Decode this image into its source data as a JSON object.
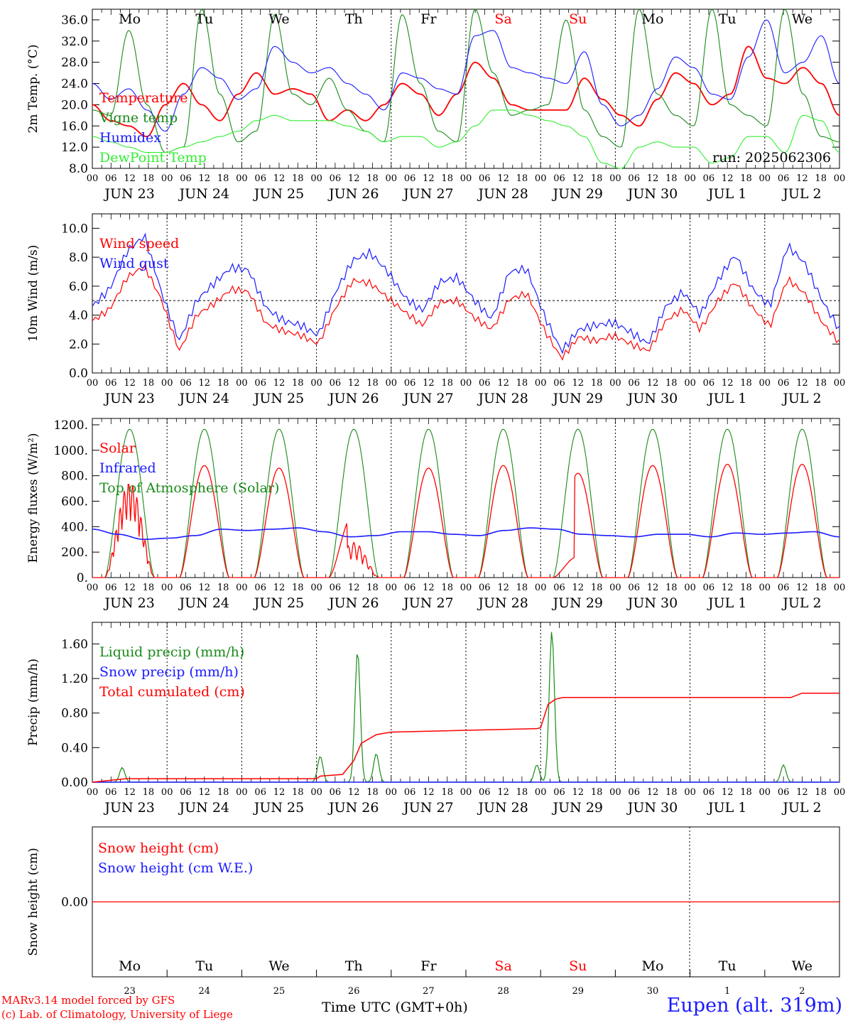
{
  "days": [
    {
      "abbr": "Mo",
      "date": "JUN 23",
      "num": "23",
      "weekend": false
    },
    {
      "abbr": "Tu",
      "date": "JUN 24",
      "num": "24",
      "weekend": false
    },
    {
      "abbr": "We",
      "date": "JUN 25",
      "num": "25",
      "weekend": false
    },
    {
      "abbr": "Th",
      "date": "JUN 26",
      "num": "26",
      "weekend": false
    },
    {
      "abbr": "Fr",
      "date": "JUN 27",
      "num": "27",
      "weekend": false
    },
    {
      "abbr": "Sa",
      "date": "JUN 28",
      "num": "28",
      "weekend": true
    },
    {
      "abbr": "Su",
      "date": "JUN 29",
      "num": "29",
      "weekend": true
    },
    {
      "abbr": "Mo",
      "date": "JUN 30",
      "num": "30",
      "weekend": false
    },
    {
      "abbr": "Tu",
      "date": "JUL  1",
      "num": "1",
      "weekend": false
    },
    {
      "abbr": "We",
      "date": "JUL  2",
      "num": "2",
      "weekend": false
    }
  ],
  "hour_ticks": [
    "00",
    "06",
    "12",
    "18"
  ],
  "colors": {
    "red": "#ff0000",
    "blue": "#1a1aff",
    "green": "#1a8a1a",
    "lightgreen": "#33ee33",
    "weekend": "#ff0000",
    "black": "#000000"
  },
  "run_label": "run: 2025062306",
  "x_axis_title": "Time UTC (GMT+0h)",
  "credit_line1": "MARv3.14 model forced by GFS",
  "credit_line2": "(c) Lab. of Climatology, University of Liege",
  "station": "Eupen (alt. 319m)",
  "chart_data": [
    {
      "type": "line",
      "ylabel": "2m Temp. (°C)",
      "ylim": [
        8,
        38
      ],
      "yticks": [
        "36.0",
        "32.0",
        "28.0",
        "24.0",
        "20.0",
        "16.0",
        "12.0",
        "8.0"
      ],
      "series": [
        {
          "name": "Temperature",
          "color": "red",
          "values": [
            20,
            17,
            16,
            14,
            20,
            24,
            20,
            17,
            22,
            26,
            22,
            23,
            22,
            17,
            19,
            17,
            20,
            24,
            22,
            18,
            22,
            28,
            25,
            20,
            19,
            19,
            19,
            25,
            21,
            18,
            16,
            21,
            26,
            24,
            20,
            22,
            31,
            25,
            24,
            27,
            24,
            18
          ]
        },
        {
          "name": "Vigne temp",
          "color": "green",
          "values": [
            19,
            18,
            34,
            20,
            11,
            12,
            38,
            22,
            13,
            15,
            37,
            22,
            20,
            25,
            19,
            15,
            13,
            37,
            24,
            15,
            13,
            38,
            26,
            18,
            19,
            20,
            36,
            19,
            14,
            12,
            38,
            22,
            18,
            16,
            38,
            20,
            18,
            16,
            38,
            22,
            14,
            13
          ]
        },
        {
          "name": "Humidex",
          "color": "blue",
          "values": [
            24,
            21,
            23,
            19,
            15,
            22,
            27,
            25,
            21,
            23,
            31,
            28,
            26,
            27,
            24,
            22,
            19,
            26,
            25,
            23,
            22,
            33,
            34,
            27,
            26,
            25,
            24,
            30,
            20,
            16,
            18,
            23,
            29,
            27,
            22,
            21,
            29,
            36,
            26,
            28,
            33,
            24
          ]
        },
        {
          "name": "DewPoint Temp",
          "color": "lightgreen",
          "values": [
            14,
            13,
            12,
            11,
            11,
            12,
            13,
            14,
            15,
            17,
            18,
            17,
            17,
            17,
            16,
            15,
            13,
            14,
            14,
            12,
            13,
            16,
            19,
            19,
            18,
            17,
            16,
            14,
            9,
            8,
            12,
            13,
            12,
            12,
            9,
            10,
            14,
            14,
            11,
            18,
            17,
            11
          ]
        }
      ]
    },
    {
      "type": "line",
      "ylabel": "10m Wind (m/s)",
      "ylim": [
        0,
        11
      ],
      "reference_line": 5,
      "yticks": [
        "10.0",
        "8.0",
        "6.0",
        "4.0",
        "2.0",
        "0.0"
      ],
      "series": [
        {
          "name": "Wind speed",
          "color": "red",
          "values": [
            3.6,
            4.4,
            6.6,
            7.4,
            5.0,
            1.5,
            4.0,
            4.8,
            5.8,
            5.6,
            3.4,
            2.9,
            2.6,
            2.0,
            4.5,
            6.4,
            6.2,
            5.2,
            4.2,
            3.3,
            4.9,
            5.0,
            3.8,
            3.0,
            5.1,
            5.5,
            3.0,
            1.0,
            2.5,
            2.2,
            2.6,
            2.0,
            1.5,
            3.6,
            4.4,
            3.0,
            5.0,
            6.3,
            4.5,
            3.2,
            6.5,
            5.5,
            3.5,
            2.1
          ]
        },
        {
          "name": "Wind gust",
          "color": "blue",
          "values": [
            4.6,
            5.8,
            8.4,
            9.5,
            5.5,
            2.2,
            5.0,
            6.2,
            7.3,
            7.1,
            4.5,
            3.6,
            3.3,
            2.6,
            5.6,
            7.8,
            8.3,
            7.0,
            5.2,
            4.3,
            6.3,
            6.6,
            5.0,
            3.7,
            7.0,
            7.2,
            4.0,
            1.5,
            3.0,
            3.3,
            3.5,
            2.8,
            2.0,
            4.6,
            5.6,
            4.0,
            6.4,
            8.2,
            5.8,
            4.6,
            8.8,
            7.6,
            5.0,
            3.0
          ]
        }
      ]
    },
    {
      "type": "line",
      "ylabel": "Energy fluxes (W/m²)",
      "ylim": [
        0,
        1250
      ],
      "yticks": [
        "1200.",
        "1000.",
        "800.",
        "600.",
        "400.",
        "200.",
        "0."
      ],
      "series": [
        {
          "name": "Solar",
          "color": "red",
          "peaks": [
            750,
            880,
            860,
            500,
            860,
            880,
            820,
            880,
            890,
            890
          ]
        },
        {
          "name": "Infrared",
          "color": "blue",
          "values": [
            380,
            340,
            300,
            310,
            330,
            380,
            370,
            380,
            390,
            360,
            320,
            330,
            360,
            360,
            340,
            330,
            370,
            390,
            380,
            340,
            330,
            320,
            340,
            340,
            320,
            350,
            340,
            350,
            360,
            320
          ]
        },
        {
          "name": "Top of Atmosphere (Solar)",
          "color": "green",
          "peak": 1165
        }
      ]
    },
    {
      "type": "line",
      "ylabel": "Precip (mm/h)",
      "ylim": [
        0,
        1.85
      ],
      "yticks": [
        "1.60",
        "1.20",
        "0.80",
        "0.40",
        "0.00"
      ],
      "series": [
        {
          "name": "Liquid precip (mm/h)",
          "color": "green",
          "events": [
            [
              0.4,
              0.17
            ],
            [
              3.05,
              0.3
            ],
            [
              3.55,
              1.52
            ],
            [
              3.8,
              0.33
            ],
            [
              5.95,
              0.2
            ],
            [
              6.15,
              1.75
            ],
            [
              9.25,
              0.2
            ]
          ]
        },
        {
          "name": "Snow precip (mm/h)",
          "color": "blue",
          "values": [
            0
          ]
        },
        {
          "name": "Total cumulated (cm)",
          "color": "red",
          "x": [
            0,
            0.45,
            3.0,
            3.05,
            3.35,
            3.5,
            3.6,
            3.8,
            4.0,
            5.95,
            6.0,
            6.1,
            6.2,
            6.3,
            9.35,
            9.5,
            10
          ],
          "values": [
            0,
            0.04,
            0.04,
            0.07,
            0.09,
            0.25,
            0.45,
            0.55,
            0.58,
            0.62,
            0.63,
            0.9,
            0.96,
            0.98,
            0.98,
            1.03,
            1.03
          ]
        }
      ]
    },
    {
      "type": "line",
      "ylabel": "Snow height (cm)",
      "ylim": [
        -1,
        1
      ],
      "yticks": [
        "0.00"
      ],
      "series": [
        {
          "name": "Snow height (cm)",
          "color": "red",
          "values": [
            0
          ]
        },
        {
          "name": "Snow height (cm W.E.)",
          "color": "blue",
          "values": [
            0
          ]
        }
      ]
    }
  ]
}
